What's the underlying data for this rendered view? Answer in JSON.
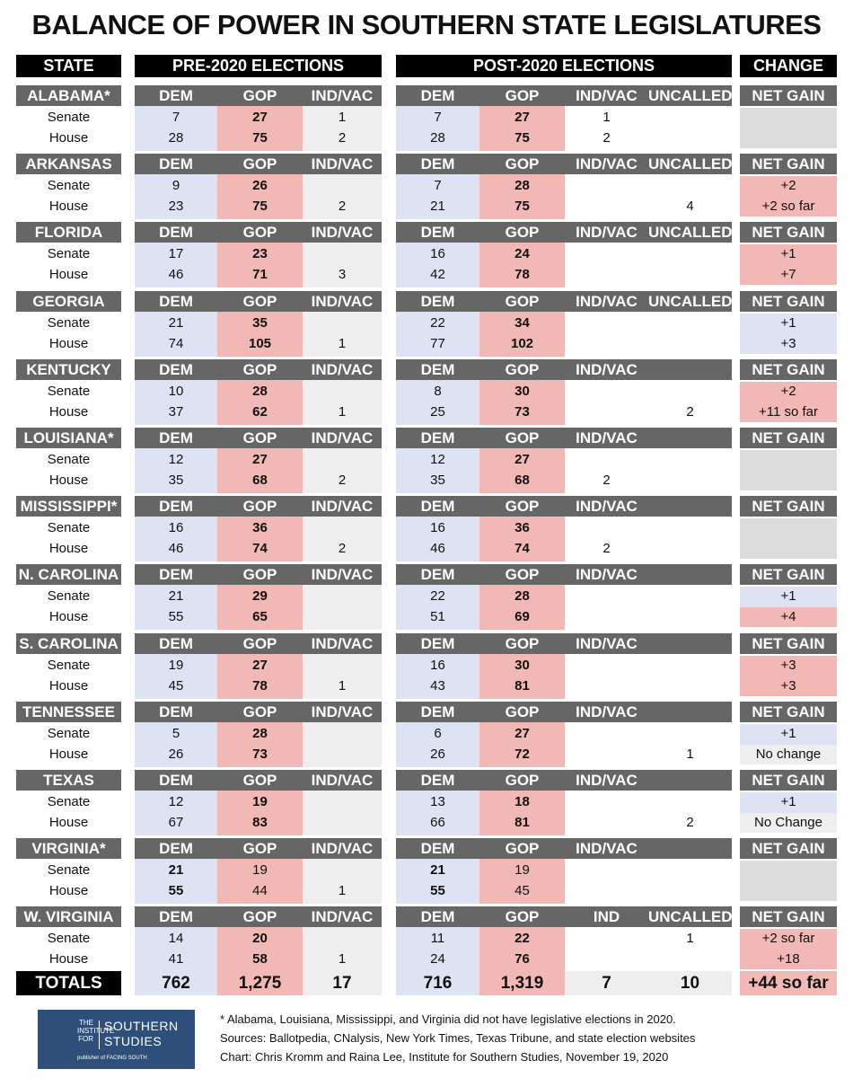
{
  "title": "BALANCE OF POWER IN SOUTHERN STATE LEGISLATURES",
  "headers": {
    "state": "STATE",
    "pre": "PRE-2020 ELECTIONS",
    "post": "POST-2020 ELECTIONS",
    "change": "CHANGE"
  },
  "col_labels": {
    "dem": "DEM",
    "gop": "GOP",
    "indvac": "IND/VAC",
    "ind": "IND",
    "uncalled": "UNCALLED",
    "netgain": "NET GAIN"
  },
  "row_labels": {
    "senate": "Senate",
    "house": "House"
  },
  "colors": {
    "dem": "#dde3f2",
    "gop": "#f2b8b6",
    "neutral": "#eeeeee",
    "header_bar": "#666666",
    "logo": "#2e4f7a"
  },
  "chart_data": {
    "type": "table",
    "title": "BALANCE OF POWER IN SOUTHERN STATE LEGISLATURES",
    "columns": [
      "STATE",
      "Pre DEM",
      "Pre GOP",
      "Pre IND/VAC",
      "Post DEM",
      "Post GOP",
      "Post IND/VAC",
      "Post UNCALLED",
      "NET GAIN"
    ],
    "states": [
      {
        "name": "ALABAMA*",
        "post_ind_header": "IND/VAC",
        "uncalled_header": true,
        "senate": {
          "pre": [
            "7",
            "27",
            "1"
          ],
          "post": [
            "7",
            "27",
            "1",
            ""
          ],
          "change": "",
          "change_party": "blank"
        },
        "house": {
          "pre": [
            "28",
            "75",
            "2"
          ],
          "post": [
            "28",
            "75",
            "2",
            ""
          ],
          "change": "",
          "change_party": "blank"
        }
      },
      {
        "name": "ARKANSAS",
        "post_ind_header": "IND/VAC",
        "uncalled_header": true,
        "senate": {
          "pre": [
            "9",
            "26",
            ""
          ],
          "post": [
            "7",
            "28",
            "",
            ""
          ],
          "change": "+2",
          "change_party": "gop"
        },
        "house": {
          "pre": [
            "23",
            "75",
            "2"
          ],
          "post": [
            "21",
            "75",
            "",
            "4"
          ],
          "change": "+2 so far",
          "change_party": "gop"
        }
      },
      {
        "name": "FLORIDA",
        "post_ind_header": "IND/VAC",
        "uncalled_header": true,
        "senate": {
          "pre": [
            "17",
            "23",
            ""
          ],
          "post": [
            "16",
            "24",
            "",
            ""
          ],
          "change": "+1",
          "change_party": "gop"
        },
        "house": {
          "pre": [
            "46",
            "71",
            "3"
          ],
          "post": [
            "42",
            "78",
            "",
            ""
          ],
          "change": "+7",
          "change_party": "gop"
        }
      },
      {
        "name": "GEORGIA",
        "post_ind_header": "IND/VAC",
        "uncalled_header": true,
        "senate": {
          "pre": [
            "21",
            "35",
            ""
          ],
          "post": [
            "22",
            "34",
            "",
            ""
          ],
          "change": "+1",
          "change_party": "dem"
        },
        "house": {
          "pre": [
            "74",
            "105",
            "1"
          ],
          "post": [
            "77",
            "102",
            "",
            ""
          ],
          "change": "+3",
          "change_party": "dem"
        }
      },
      {
        "name": "KENTUCKY",
        "post_ind_header": "IND/VAC",
        "uncalled_header": false,
        "senate": {
          "pre": [
            "10",
            "28",
            ""
          ],
          "post": [
            "8",
            "30",
            "",
            ""
          ],
          "change": "+2",
          "change_party": "gop"
        },
        "house": {
          "pre": [
            "37",
            "62",
            "1"
          ],
          "post": [
            "25",
            "73",
            "",
            "2"
          ],
          "change": "+11 so far",
          "change_party": "gop"
        }
      },
      {
        "name": "LOUISIANA*",
        "post_ind_header": "IND/VAC",
        "uncalled_header": false,
        "senate": {
          "pre": [
            "12",
            "27",
            ""
          ],
          "post": [
            "12",
            "27",
            "",
            ""
          ],
          "change": "",
          "change_party": "blank"
        },
        "house": {
          "pre": [
            "35",
            "68",
            "2"
          ],
          "post": [
            "35",
            "68",
            "2",
            ""
          ],
          "change": "",
          "change_party": "blank"
        }
      },
      {
        "name": "MISSISSIPPI*",
        "post_ind_header": "IND/VAC",
        "uncalled_header": false,
        "senate": {
          "pre": [
            "16",
            "36",
            ""
          ],
          "post": [
            "16",
            "36",
            "",
            ""
          ],
          "change": "",
          "change_party": "blank"
        },
        "house": {
          "pre": [
            "46",
            "74",
            "2"
          ],
          "post": [
            "46",
            "74",
            "2",
            ""
          ],
          "change": "",
          "change_party": "blank"
        }
      },
      {
        "name": "N. CAROLINA",
        "post_ind_header": "IND/VAC",
        "uncalled_header": false,
        "senate": {
          "pre": [
            "21",
            "29",
            ""
          ],
          "post": [
            "22",
            "28",
            "",
            ""
          ],
          "change": "+1",
          "change_party": "dem"
        },
        "house": {
          "pre": [
            "55",
            "65",
            ""
          ],
          "post": [
            "51",
            "69",
            "",
            ""
          ],
          "change": "+4",
          "change_party": "gop"
        }
      },
      {
        "name": "S. CAROLINA",
        "post_ind_header": "IND/VAC",
        "uncalled_header": false,
        "senate": {
          "pre": [
            "19",
            "27",
            ""
          ],
          "post": [
            "16",
            "30",
            "",
            ""
          ],
          "change": "+3",
          "change_party": "gop"
        },
        "house": {
          "pre": [
            "45",
            "78",
            "1"
          ],
          "post": [
            "43",
            "81",
            "",
            ""
          ],
          "change": "+3",
          "change_party": "gop"
        }
      },
      {
        "name": "TENNESSEE",
        "post_ind_header": "IND/VAC",
        "uncalled_header": false,
        "senate": {
          "pre": [
            "5",
            "28",
            ""
          ],
          "post": [
            "6",
            "27",
            "",
            ""
          ],
          "change": "+1",
          "change_party": "dem"
        },
        "house": {
          "pre": [
            "26",
            "73",
            ""
          ],
          "post": [
            "26",
            "72",
            "",
            "1"
          ],
          "change": "No change",
          "change_party": "none"
        }
      },
      {
        "name": "TEXAS",
        "post_ind_header": "IND/VAC",
        "uncalled_header": false,
        "senate": {
          "pre": [
            "12",
            "19",
            ""
          ],
          "post": [
            "13",
            "18",
            "",
            ""
          ],
          "change": "+1",
          "change_party": "dem"
        },
        "house": {
          "pre": [
            "67",
            "83",
            ""
          ],
          "post": [
            "66",
            "81",
            "",
            "2"
          ],
          "change": "No Change",
          "change_party": "none"
        }
      },
      {
        "name": "VIRGINIA*",
        "post_ind_header": "IND/VAC",
        "uncalled_header": false,
        "dem_bold": true,
        "senate": {
          "pre": [
            "21",
            "19",
            ""
          ],
          "post": [
            "21",
            "19",
            "",
            ""
          ],
          "change": "",
          "change_party": "blank"
        },
        "house": {
          "pre": [
            "55",
            "44",
            "1"
          ],
          "post": [
            "55",
            "45",
            "",
            ""
          ],
          "change": "",
          "change_party": "blank"
        }
      },
      {
        "name": "W. VIRGINIA",
        "post_ind_header": "IND",
        "uncalled_header": true,
        "senate": {
          "pre": [
            "14",
            "20",
            ""
          ],
          "post": [
            "11",
            "22",
            "",
            "1"
          ],
          "change": "+2 so far",
          "change_party": "gop"
        },
        "house": {
          "pre": [
            "41",
            "58",
            "1"
          ],
          "post": [
            "24",
            "76",
            "",
            ""
          ],
          "change": "+18",
          "change_party": "gop"
        }
      }
    ],
    "totals": {
      "label": "TOTALS",
      "pre": [
        "762",
        "1,275",
        "17"
      ],
      "post": [
        "716",
        "1,319",
        "7",
        "10"
      ],
      "change": "+44 so far"
    }
  },
  "logo": {
    "small": [
      "THE",
      "INSTITUTE",
      "FOR"
    ],
    "big": [
      "SOUTHERN",
      "STUDIES"
    ],
    "foot": "publisher of FACING SOUTH"
  },
  "notes": [
    "* Alabama, Louisiana, Mississippi, and Virginia did not have legislative elections in 2020.",
    "Sources: Ballotpedia, CNalysis, New York Times, Texas Tribune, and state election websites",
    "Chart: Chris Kromm and Raina Lee, Institute for Southern Studies, November 19, 2020"
  ]
}
